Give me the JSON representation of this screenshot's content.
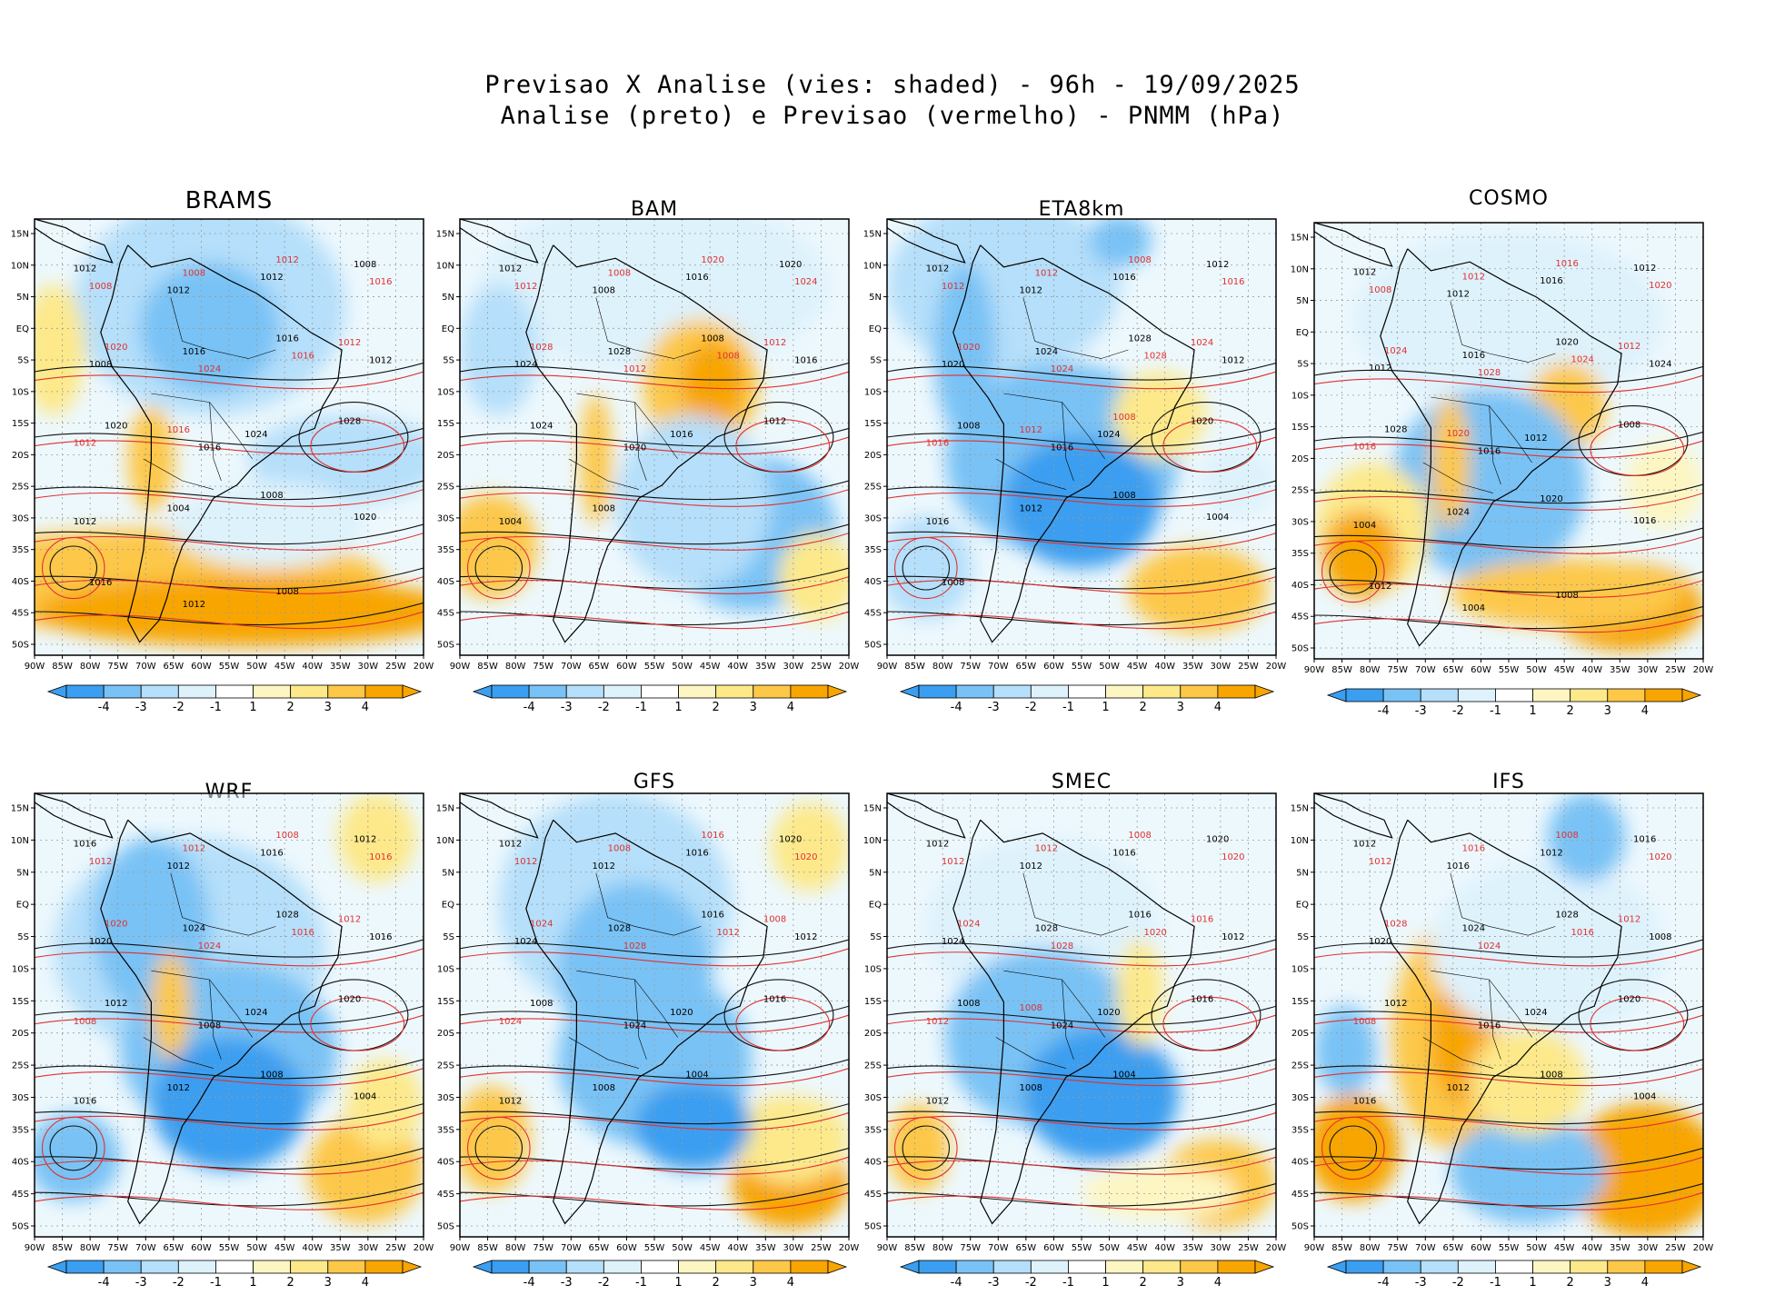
{
  "header": {
    "line1": "Previsao X Analise (vies: shaded) - 96h - 19/09/2025",
    "line2": "Analise (preto) e Previsao (vermelho) - PNMM (hPa)"
  },
  "colors": {
    "neg4": "#3b9ef0",
    "neg3": "#79c2f5",
    "neg2": "#b5dffa",
    "neg1": "#def2fc",
    "zero": "#ffffff",
    "pos1": "#fdf6c2",
    "pos2": "#fde98a",
    "pos3": "#fdc848",
    "pos4": "#f8a500",
    "analysis": "#000000",
    "forecast": "#e03030"
  },
  "axes": {
    "lat_ticks": [
      "15N",
      "10N",
      "5N",
      "EQ",
      "5S",
      "10S",
      "15S",
      "20S",
      "25S",
      "30S",
      "35S",
      "40S",
      "45S",
      "50S"
    ],
    "lon_ticks": [
      "90W",
      "85W",
      "80W",
      "75W",
      "70W",
      "65W",
      "60W",
      "55W",
      "50W",
      "45W",
      "40W",
      "35W",
      "30W",
      "25W",
      "20W"
    ]
  },
  "colorbar": {
    "labels": [
      "-4",
      "-3",
      "-2",
      "-1",
      "1",
      "2",
      "3",
      "4"
    ]
  },
  "panels": [
    {
      "name": "BRAMS",
      "labels_analysis": [
        "1012",
        "1012",
        "1012",
        "1008",
        "1008",
        "1016",
        "1016",
        "1012",
        "1020",
        "1016",
        "1024",
        "1028",
        "1012",
        "1004",
        "1008",
        "1020",
        "1016",
        "1012",
        "1008"
      ],
      "labels_forecast": [
        "1008",
        "1008",
        "1012",
        "1016",
        "1020",
        "1024",
        "1016",
        "1012",
        "1012",
        "1016"
      ]
    },
    {
      "name": "BAM",
      "labels_analysis": [
        "1012",
        "1008",
        "1016",
        "1020",
        "1024",
        "1028",
        "1008",
        "1016",
        "1024",
        "1020",
        "1016",
        "1012",
        "1004",
        "1008"
      ],
      "labels_forecast": [
        "1012",
        "1008",
        "1020",
        "1024",
        "1028",
        "1012",
        "1008",
        "1012"
      ]
    },
    {
      "name": "ETA8km",
      "labels_analysis": [
        "1012",
        "1012",
        "1016",
        "1012",
        "1020",
        "1024",
        "1028",
        "1012",
        "1008",
        "1016",
        "1024",
        "1020",
        "1016",
        "1012",
        "1008",
        "1004",
        "1008"
      ],
      "labels_forecast": [
        "1012",
        "1012",
        "1008",
        "1016",
        "1020",
        "1024",
        "1028",
        "1024",
        "1016",
        "1012",
        "1008"
      ]
    },
    {
      "name": "COSMO",
      "labels_analysis": [
        "1012",
        "1012",
        "1016",
        "1012",
        "1012",
        "1016",
        "1020",
        "1024",
        "1028",
        "1016",
        "1012",
        "1008",
        "1004",
        "1024",
        "1020",
        "1016",
        "1012",
        "1004",
        "1008"
      ],
      "labels_forecast": [
        "1008",
        "1012",
        "1016",
        "1020",
        "1024",
        "1028",
        "1024",
        "1012",
        "1016",
        "1020"
      ]
    },
    {
      "name": "WRF",
      "labels_analysis": [
        "1016",
        "1012",
        "1016",
        "1012",
        "1020",
        "1024",
        "1028",
        "1016",
        "1012",
        "1008",
        "1024",
        "1020",
        "1016",
        "1012",
        "1008",
        "1004"
      ],
      "labels_forecast": [
        "1012",
        "1012",
        "1008",
        "1016",
        "1020",
        "1024",
        "1016",
        "1012",
        "1008"
      ]
    },
    {
      "name": "GFS",
      "labels_analysis": [
        "1012",
        "1012",
        "1016",
        "1020",
        "1024",
        "1028",
        "1016",
        "1012",
        "1008",
        "1024",
        "1020",
        "1016",
        "1012",
        "1008",
        "1004"
      ],
      "labels_forecast": [
        "1012",
        "1008",
        "1016",
        "1020",
        "1024",
        "1028",
        "1012",
        "1008",
        "1024"
      ]
    },
    {
      "name": "SMEC",
      "labels_analysis": [
        "1012",
        "1012",
        "1016",
        "1020",
        "1024",
        "1028",
        "1016",
        "1012",
        "1008",
        "1024",
        "1020",
        "1016",
        "1012",
        "1008",
        "1004"
      ],
      "labels_forecast": [
        "1012",
        "1012",
        "1008",
        "1020",
        "1024",
        "1028",
        "1020",
        "1016",
        "1012",
        "1008"
      ]
    },
    {
      "name": "IFS",
      "labels_analysis": [
        "1012",
        "1016",
        "1012",
        "1016",
        "1020",
        "1024",
        "1028",
        "1008",
        "1012",
        "1016",
        "1024",
        "1020",
        "1016",
        "1012",
        "1008",
        "1004"
      ],
      "labels_forecast": [
        "1012",
        "1016",
        "1008",
        "1020",
        "1028",
        "1024",
        "1016",
        "1012",
        "1008"
      ]
    }
  ]
}
